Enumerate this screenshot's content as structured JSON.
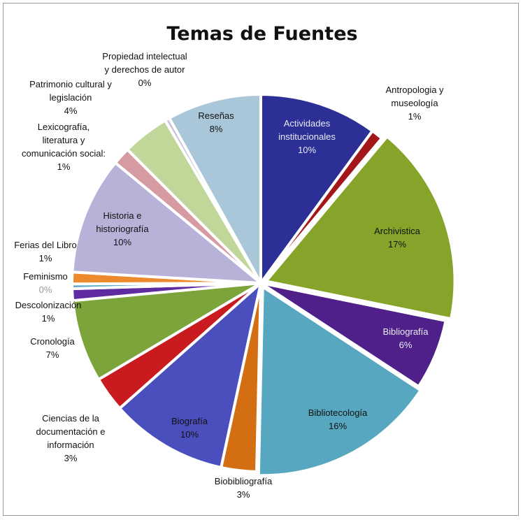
{
  "chart_data": {
    "type": "pie",
    "title": "Temas de Fuentes",
    "slices": [
      {
        "label": "Actividades institucionales",
        "value": 10,
        "value_label": "10%",
        "color": "#2b2f96"
      },
      {
        "label": "Antropologia y museología",
        "value": 1,
        "value_label": "1%",
        "color": "#a3171a"
      },
      {
        "label": "Archivistica",
        "value": 17,
        "value_label": "17%",
        "color": "#86a32a"
      },
      {
        "label": "Bibliografía",
        "value": 6,
        "value_label": "6%",
        "color": "#4f1f8a"
      },
      {
        "label": "Bibliotecología",
        "value": 16,
        "value_label": "16%",
        "color": "#56a7bf"
      },
      {
        "label": "Biobibliografía",
        "value": 3,
        "value_label": "3%",
        "color": "#d36f12"
      },
      {
        "label": "Biografía",
        "value": 10,
        "value_label": "10%",
        "color": "#4a4fbd"
      },
      {
        "label": "Ciencias de la documentación e información",
        "value": 3,
        "value_label": "3%",
        "color": "#c81a1f"
      },
      {
        "label": "Cronología",
        "value": 7,
        "value_label": "7%",
        "color": "#7da43a"
      },
      {
        "label": "Descolonización",
        "value": 1,
        "value_label": "1%",
        "color": "#5e2ba0"
      },
      {
        "label": "Feminismo",
        "value": 0.4,
        "value_label": "0%",
        "color": "#63b0cc"
      },
      {
        "label": "Ferias del Libro",
        "value": 1,
        "value_label": "1%",
        "color": "#ee8a2e"
      },
      {
        "label": "Historia e historiografía",
        "value": 10,
        "value_label": "10%",
        "color": "#b7b3d8"
      },
      {
        "label": "Lexicografía, literatura y comunicación social:",
        "value": 1.5,
        "value_label": "1%",
        "color": "#d69aa3"
      },
      {
        "label": "Patrimonio cultural y legislación",
        "value": 4,
        "value_label": "4%",
        "color": "#c1d79a"
      },
      {
        "label": "Propiedad intelectual y derechos de autor",
        "value": 0.4,
        "value_label": "0%",
        "color": "#c8c0dd"
      },
      {
        "label": "Reseñas",
        "value": 8,
        "value_label": "8%",
        "color": "#aac7d9"
      }
    ],
    "labels": [
      {
        "lines": [
          "Actividades",
          "institucionales",
          "10%"
        ],
        "style": "in-light"
      },
      {
        "lines": [
          "Antropologia  y",
          "museología",
          "1%"
        ],
        "style": "out"
      },
      {
        "lines": [
          "Archivistica",
          "17%"
        ],
        "style": "in"
      },
      {
        "lines": [
          "Bibliografía",
          "6%"
        ],
        "style": "in-light"
      },
      {
        "lines": [
          "Bibliotecología",
          "16%"
        ],
        "style": "in"
      },
      {
        "lines": [
          "Biobibliografía",
          "3%"
        ],
        "style": "out"
      },
      {
        "lines": [
          "Biografía",
          "10%"
        ],
        "style": "in"
      },
      {
        "lines": [
          "Ciencias de la",
          "documentación  e",
          "información",
          "3%"
        ],
        "style": "out"
      },
      {
        "lines": [
          "Cronología",
          "7%"
        ],
        "style": "out"
      },
      {
        "lines": [
          "Descolonización",
          "1%"
        ],
        "style": "out"
      },
      {
        "lines": [
          "Feminismo",
          "0%"
        ],
        "style": "out",
        "value_grey": true
      },
      {
        "lines": [
          "Ferias del Libro",
          "1%"
        ],
        "style": "out"
      },
      {
        "lines": [
          "Historia  e",
          "historiografía",
          "10%"
        ],
        "style": "in"
      },
      {
        "lines": [
          "Lexicografía,",
          "literatura y",
          "comunicación social:",
          "1%"
        ],
        "style": "out"
      },
      {
        "lines": [
          "Patrimonio cultural y",
          "legislación",
          "4%"
        ],
        "style": "out"
      },
      {
        "lines": [
          "Propiedad intelectual",
          "y derechos de autor",
          "0%"
        ],
        "style": "out"
      },
      {
        "lines": [
          "Reseñas",
          "8%"
        ],
        "style": "in"
      }
    ],
    "legend": "none"
  }
}
